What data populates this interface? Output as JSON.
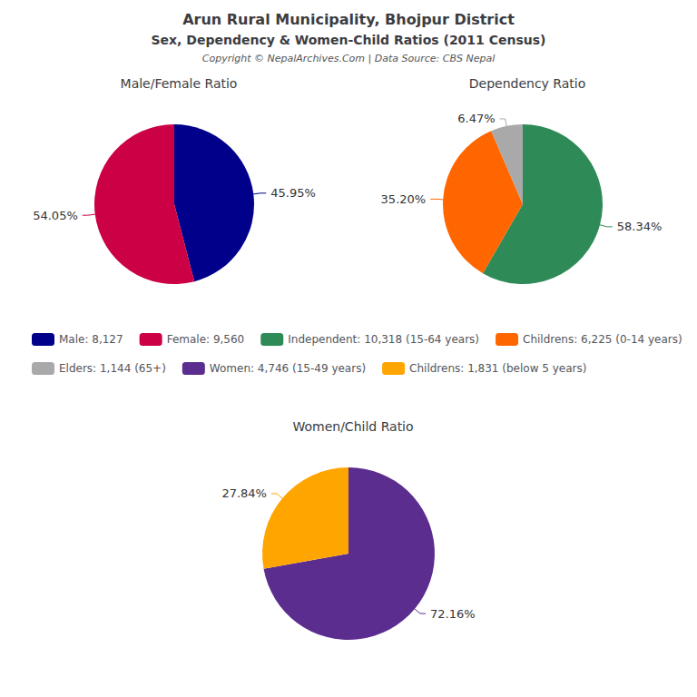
{
  "title": "Arun Rural Municipality, Bhojpur District",
  "subtitle": "Sex, Dependency & Women-Child Ratios (2011 Census)",
  "annotations": [
    "Copyright © NepalArchives.Com | Data Source: CBS Nepal"
  ],
  "chart_data": [
    {
      "type": "pie",
      "title": "Male/Female Ratio",
      "categories": [
        "Male: 8,127",
        "Female: 9,560"
      ],
      "values": [
        45.95,
        54.05
      ],
      "value_labels": [
        "45.95%",
        "54.05%"
      ],
      "colors": [
        "#00008B",
        "#CC0044"
      ],
      "data_labels": true,
      "legend": "center"
    },
    {
      "type": "pie",
      "title": "Dependency Ratio",
      "categories": [
        "Independent: 10,318 (15-64 years)",
        "Childrens: 6,225 (0-14 years)",
        "Elders: 1,144 (65+)"
      ],
      "values": [
        58.34,
        35.2,
        6.47
      ],
      "value_labels": [
        "58.34%",
        "35.20%",
        "6.47%"
      ],
      "colors": [
        "#2E8B57",
        "#FF6600",
        "#A9A9A9"
      ],
      "data_labels": true,
      "legend": "center"
    },
    {
      "type": "pie",
      "title": "Women/Child Ratio",
      "categories": [
        "Women: 4,746 (15-49 years)",
        "Childrens: 1,831 (below 5 years)"
      ],
      "values": [
        72.16,
        27.84
      ],
      "value_labels": [
        "72.16%",
        "27.84%"
      ],
      "colors": [
        "#5B2D8E",
        "#FFA500"
      ],
      "data_labels": true,
      "legend": "center"
    }
  ]
}
